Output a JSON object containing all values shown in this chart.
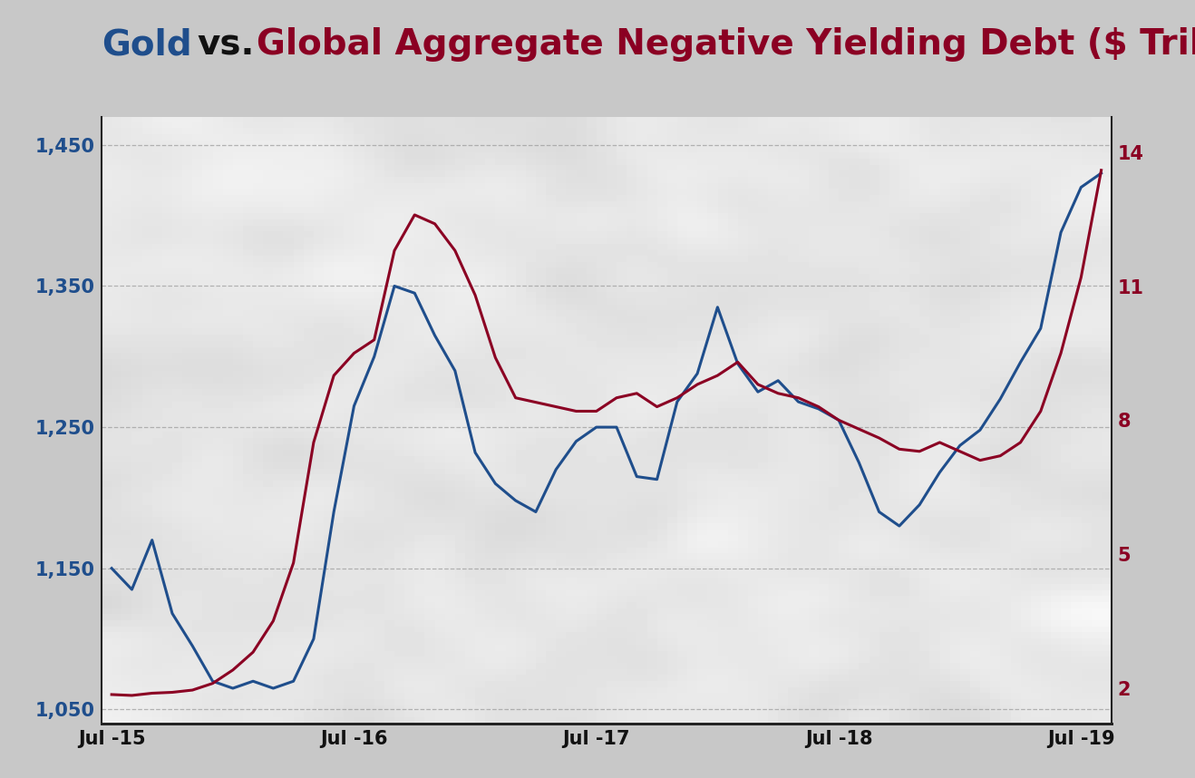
{
  "gold_color": "#1f4e8c",
  "debt_color": "#8b0023",
  "gold_linewidth": 2.2,
  "debt_linewidth": 2.2,
  "left_ylim": [
    1040,
    1470
  ],
  "right_ylim": [
    1.2,
    14.8
  ],
  "left_yticks": [
    1050,
    1150,
    1250,
    1350,
    1450
  ],
  "right_yticks": [
    2,
    5,
    8,
    11,
    14
  ],
  "xtick_positions": [
    0,
    12,
    24,
    36,
    48
  ],
  "xtick_labels": [
    "Jul -15",
    "Jul -16",
    "Jul -17",
    "Jul -18",
    "Jul -19"
  ],
  "background_color": "#c8c8c8",
  "plot_bg_color": "#e0dede",
  "title_gold": "Gold",
  "title_vs": " vs. ",
  "title_rest": "Global Aggregate Negative Yielding Debt ($ Trillions)",
  "title_color_gold": "#1f4e8c",
  "title_color_vs": "#111111",
  "title_color_rest": "#8b0023",
  "title_fontsize": 28,
  "gold_x": [
    0,
    1,
    2,
    3,
    4,
    5,
    6,
    7,
    8,
    9,
    10,
    11,
    12,
    13,
    14,
    15,
    16,
    17,
    18,
    19,
    20,
    21,
    22,
    23,
    24,
    25,
    26,
    27,
    28,
    29,
    30,
    31,
    32,
    33,
    34,
    35,
    36,
    37,
    38,
    39,
    40,
    41,
    42,
    43,
    44,
    45,
    46,
    47,
    48,
    49
  ],
  "gold_y": [
    1150,
    1135,
    1170,
    1118,
    1095,
    1070,
    1065,
    1070,
    1065,
    1070,
    1100,
    1190,
    1265,
    1300,
    1350,
    1345,
    1315,
    1290,
    1232,
    1210,
    1198,
    1190,
    1220,
    1240,
    1250,
    1250,
    1215,
    1213,
    1268,
    1288,
    1335,
    1295,
    1275,
    1283,
    1268,
    1263,
    1255,
    1225,
    1190,
    1180,
    1195,
    1218,
    1237,
    1248,
    1270,
    1296,
    1320,
    1388,
    1420,
    1430
  ],
  "debt_x": [
    0,
    1,
    2,
    3,
    4,
    5,
    6,
    7,
    8,
    9,
    10,
    11,
    12,
    13,
    14,
    15,
    16,
    17,
    18,
    19,
    20,
    21,
    22,
    23,
    24,
    25,
    26,
    27,
    28,
    29,
    30,
    31,
    32,
    33,
    34,
    35,
    36,
    37,
    38,
    39,
    40,
    41,
    42,
    43,
    44,
    45,
    46,
    47,
    48,
    49
  ],
  "debt_y": [
    1.85,
    1.83,
    1.88,
    1.9,
    1.95,
    2.1,
    2.4,
    2.8,
    3.5,
    4.8,
    7.5,
    9.0,
    9.5,
    9.8,
    11.8,
    12.6,
    12.4,
    11.8,
    10.8,
    9.4,
    8.5,
    8.4,
    8.3,
    8.2,
    8.2,
    8.5,
    8.6,
    8.3,
    8.5,
    8.8,
    9.0,
    9.3,
    8.8,
    8.6,
    8.5,
    8.3,
    8.0,
    7.8,
    7.6,
    7.35,
    7.3,
    7.5,
    7.3,
    7.1,
    7.2,
    7.5,
    8.2,
    9.5,
    11.2,
    13.6
  ]
}
